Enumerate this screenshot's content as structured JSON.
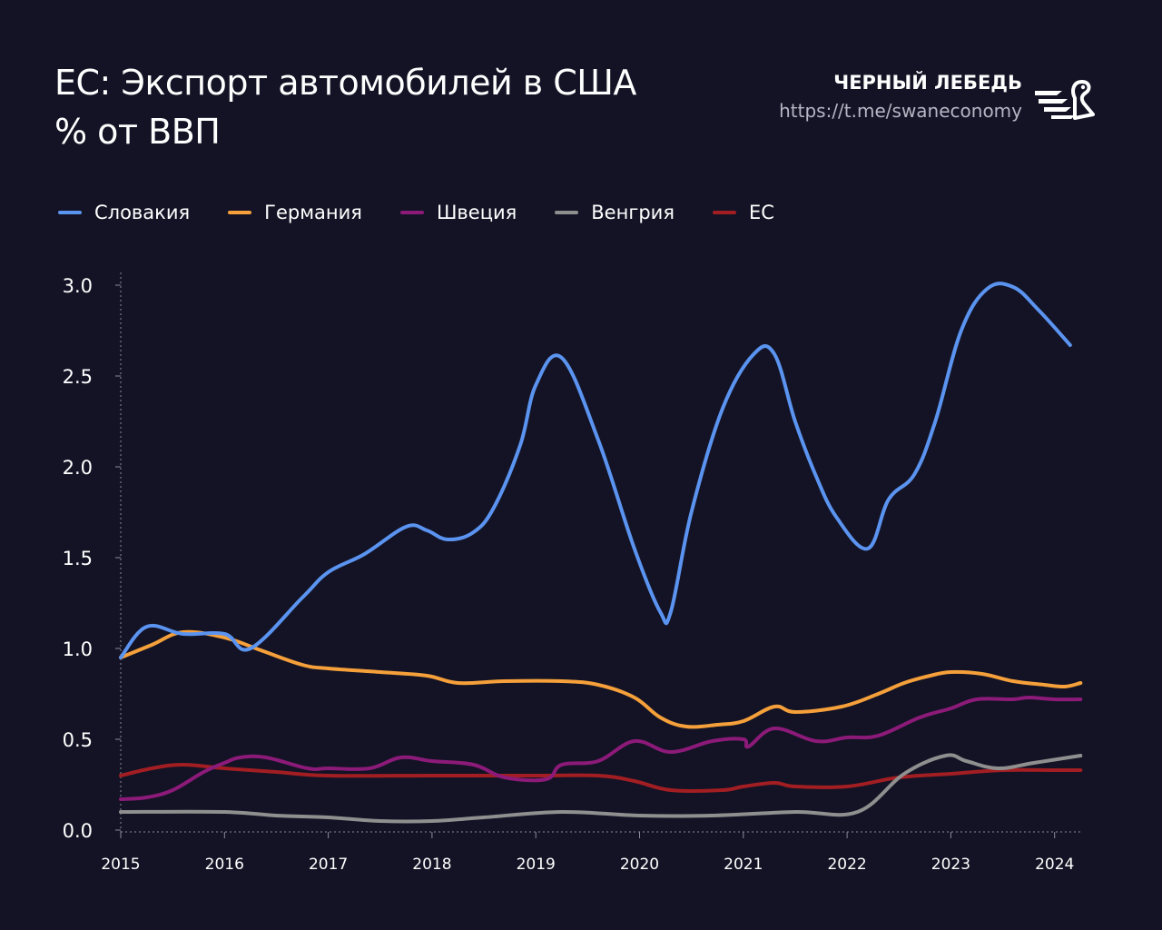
{
  "header": {
    "title_line1": "ЕС: Экспорт автомобилей в США",
    "title_line2": "% от ВВП"
  },
  "brand": {
    "name": "ЧЕРНЫЙ ЛЕБЕДЬ",
    "url": "https://t.me/swaneconomy",
    "logo_icon": "swan-logo-icon"
  },
  "colors": {
    "background": "#131325",
    "axis": "#8a8ba0",
    "text": "#ffffff"
  },
  "chart_data": {
    "type": "line",
    "title": "ЕС: Экспорт автомобилей в США % от ВВП",
    "xlabel": "",
    "ylabel": "",
    "xlim": [
      2015,
      2024.25
    ],
    "ylim": [
      0,
      3.0
    ],
    "x_ticks": [
      "2015",
      "2016",
      "2017",
      "2018",
      "2019",
      "2020",
      "2021",
      "2022",
      "2023",
      "2024"
    ],
    "y_ticks": [
      "0.0",
      "0.5",
      "1.0",
      "1.5",
      "2.0",
      "2.5",
      "3.0"
    ],
    "legend_position": "top",
    "series": [
      {
        "name": "Словакия",
        "color": "#5b94f0",
        "points": [
          [
            2015.0,
            0.95
          ],
          [
            2015.25,
            1.12
          ],
          [
            2015.6,
            1.08
          ],
          [
            2016.0,
            1.08
          ],
          [
            2016.25,
            1.0
          ],
          [
            2016.75,
            1.28
          ],
          [
            2017.0,
            1.42
          ],
          [
            2017.35,
            1.52
          ],
          [
            2017.75,
            1.67
          ],
          [
            2017.95,
            1.65
          ],
          [
            2018.15,
            1.6
          ],
          [
            2018.4,
            1.64
          ],
          [
            2018.6,
            1.78
          ],
          [
            2018.85,
            2.12
          ],
          [
            2019.0,
            2.45
          ],
          [
            2019.25,
            2.6
          ],
          [
            2019.6,
            2.15
          ],
          [
            2019.95,
            1.55
          ],
          [
            2020.2,
            1.2
          ],
          [
            2020.3,
            1.2
          ],
          [
            2020.5,
            1.75
          ],
          [
            2020.8,
            2.32
          ],
          [
            2021.1,
            2.62
          ],
          [
            2021.3,
            2.62
          ],
          [
            2021.5,
            2.25
          ],
          [
            2021.7,
            1.95
          ],
          [
            2021.9,
            1.72
          ],
          [
            2022.2,
            1.55
          ],
          [
            2022.4,
            1.82
          ],
          [
            2022.65,
            1.96
          ],
          [
            2022.85,
            2.25
          ],
          [
            2023.1,
            2.75
          ],
          [
            2023.35,
            2.98
          ],
          [
            2023.6,
            2.99
          ],
          [
            2023.85,
            2.86
          ],
          [
            2024.15,
            2.67
          ]
        ]
      },
      {
        "name": "Германия",
        "color": "#f5a03a",
        "points": [
          [
            2015.0,
            0.95
          ],
          [
            2015.3,
            1.02
          ],
          [
            2015.6,
            1.09
          ],
          [
            2016.0,
            1.06
          ],
          [
            2016.35,
            0.99
          ],
          [
            2016.75,
            0.91
          ],
          [
            2017.0,
            0.89
          ],
          [
            2017.5,
            0.87
          ],
          [
            2017.95,
            0.85
          ],
          [
            2018.25,
            0.81
          ],
          [
            2018.7,
            0.82
          ],
          [
            2019.25,
            0.82
          ],
          [
            2019.6,
            0.8
          ],
          [
            2019.95,
            0.73
          ],
          [
            2020.2,
            0.62
          ],
          [
            2020.45,
            0.57
          ],
          [
            2020.75,
            0.58
          ],
          [
            2021.0,
            0.6
          ],
          [
            2021.3,
            0.68
          ],
          [
            2021.5,
            0.65
          ],
          [
            2021.95,
            0.68
          ],
          [
            2022.3,
            0.75
          ],
          [
            2022.55,
            0.81
          ],
          [
            2022.8,
            0.85
          ],
          [
            2023.0,
            0.87
          ],
          [
            2023.3,
            0.86
          ],
          [
            2023.6,
            0.82
          ],
          [
            2023.9,
            0.8
          ],
          [
            2024.1,
            0.79
          ],
          [
            2024.25,
            0.81
          ]
        ]
      },
      {
        "name": "Швеция",
        "color": "#8c1a78",
        "points": [
          [
            2015.0,
            0.17
          ],
          [
            2015.25,
            0.18
          ],
          [
            2015.5,
            0.22
          ],
          [
            2015.8,
            0.32
          ],
          [
            2016.0,
            0.37
          ],
          [
            2016.15,
            0.4
          ],
          [
            2016.4,
            0.4
          ],
          [
            2016.8,
            0.34
          ],
          [
            2017.0,
            0.34
          ],
          [
            2017.4,
            0.34
          ],
          [
            2017.7,
            0.4
          ],
          [
            2018.0,
            0.38
          ],
          [
            2018.4,
            0.36
          ],
          [
            2018.7,
            0.29
          ],
          [
            2019.1,
            0.28
          ],
          [
            2019.25,
            0.36
          ],
          [
            2019.6,
            0.38
          ],
          [
            2019.95,
            0.49
          ],
          [
            2020.3,
            0.43
          ],
          [
            2020.7,
            0.49
          ],
          [
            2021.0,
            0.5
          ],
          [
            2021.05,
            0.46
          ],
          [
            2021.3,
            0.56
          ],
          [
            2021.7,
            0.49
          ],
          [
            2022.0,
            0.51
          ],
          [
            2022.3,
            0.52
          ],
          [
            2022.7,
            0.62
          ],
          [
            2023.0,
            0.67
          ],
          [
            2023.25,
            0.72
          ],
          [
            2023.6,
            0.72
          ],
          [
            2023.75,
            0.73
          ],
          [
            2024.0,
            0.72
          ],
          [
            2024.25,
            0.72
          ]
        ]
      },
      {
        "name": "Венгрия",
        "color": "#8f8f8f",
        "points": [
          [
            2015.0,
            0.1
          ],
          [
            2016.0,
            0.1
          ],
          [
            2016.5,
            0.08
          ],
          [
            2017.0,
            0.07
          ],
          [
            2017.5,
            0.05
          ],
          [
            2018.0,
            0.05
          ],
          [
            2018.5,
            0.07
          ],
          [
            2019.25,
            0.1
          ],
          [
            2020.0,
            0.08
          ],
          [
            2020.7,
            0.08
          ],
          [
            2021.5,
            0.1
          ],
          [
            2022.1,
            0.1
          ],
          [
            2022.55,
            0.31
          ],
          [
            2022.95,
            0.41
          ],
          [
            2023.15,
            0.38
          ],
          [
            2023.45,
            0.34
          ],
          [
            2023.8,
            0.37
          ],
          [
            2024.25,
            0.41
          ]
        ]
      },
      {
        "name": "ЕС",
        "color": "#a21e22",
        "points": [
          [
            2015.0,
            0.3
          ],
          [
            2015.3,
            0.34
          ],
          [
            2015.6,
            0.36
          ],
          [
            2016.0,
            0.34
          ],
          [
            2016.5,
            0.32
          ],
          [
            2017.0,
            0.3
          ],
          [
            2018.0,
            0.3
          ],
          [
            2019.0,
            0.3
          ],
          [
            2019.6,
            0.3
          ],
          [
            2019.95,
            0.27
          ],
          [
            2020.3,
            0.22
          ],
          [
            2020.8,
            0.22
          ],
          [
            2021.0,
            0.24
          ],
          [
            2021.3,
            0.26
          ],
          [
            2021.5,
            0.24
          ],
          [
            2022.0,
            0.24
          ],
          [
            2022.5,
            0.29
          ],
          [
            2023.0,
            0.31
          ],
          [
            2023.5,
            0.33
          ],
          [
            2024.0,
            0.33
          ],
          [
            2024.25,
            0.33
          ]
        ]
      }
    ]
  }
}
